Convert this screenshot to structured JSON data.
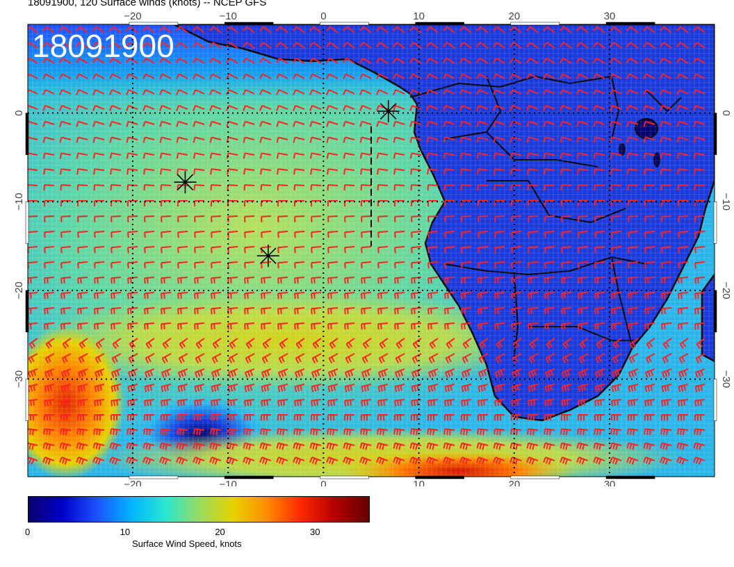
{
  "header": {
    "title": "18091900, 120 Surface winds (knots) -- NCEP GFS"
  },
  "map": {
    "date_stamp": "18091900",
    "lon_labels": [
      "−20",
      "−10",
      "0",
      "10",
      "20",
      "30"
    ],
    "lon_values": [
      -20,
      -10,
      0,
      10,
      20,
      30
    ],
    "lat_labels": [
      "0",
      "−10",
      "−20",
      "−30"
    ],
    "lat_values": [
      0,
      -10,
      -20,
      -30
    ],
    "lon_range": [
      -31,
      41
    ],
    "lat_range": [
      -41,
      10
    ],
    "markers": [
      {
        "name": "storm-marker",
        "lon": -14.5,
        "lat": -7.8
      },
      {
        "name": "storm-marker",
        "lon": -5.8,
        "lat": -16.1
      },
      {
        "name": "storm-marker",
        "lon": 6.8,
        "lat": 0.2
      }
    ],
    "dashed_line": {
      "lon": 5.0,
      "lat_from": -1.5,
      "lat_to": -15.0
    },
    "colors": {
      "barb": "#ff2020",
      "coast": "#000000",
      "grid": "#000000"
    }
  },
  "colorbar": {
    "title": "Surface Wind Speed, knots",
    "ticks": [
      "0",
      "10",
      "20",
      "30"
    ],
    "tick_values": [
      0,
      10,
      20,
      30
    ],
    "range": [
      0,
      36
    ],
    "gradient": [
      "#0a006e",
      "#0000c8",
      "#1e50ff",
      "#00b4ff",
      "#28e6d2",
      "#96dc64",
      "#e6d200",
      "#ff8c00",
      "#ff2800",
      "#b40000",
      "#640000"
    ]
  }
}
